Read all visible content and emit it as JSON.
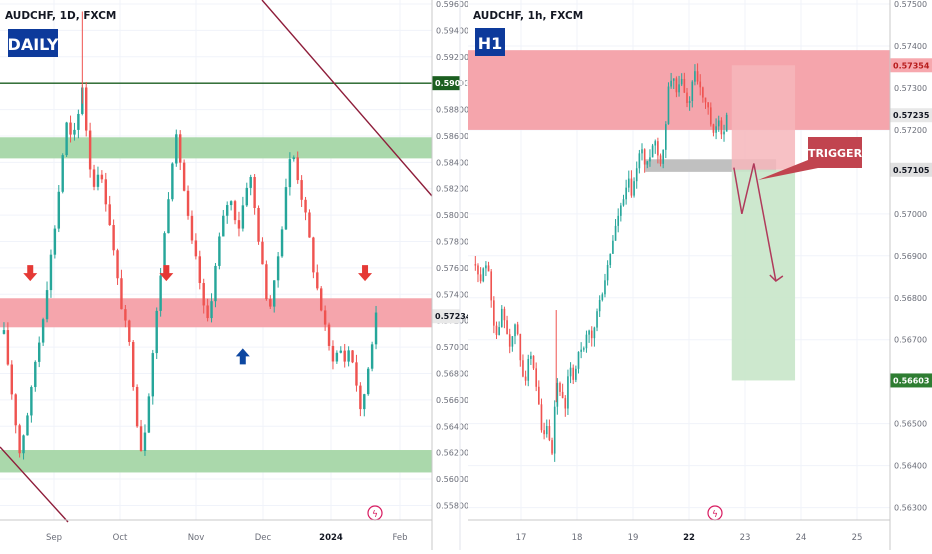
{
  "chart_data": [
    {
      "type": "candlestick",
      "symbol_label": "AUDCHF, 1D, FXCM",
      "badge": "DAILY",
      "ylim": [
        0.5572,
        0.596
      ],
      "y_ticks": [
        "0.59600",
        "0.59400",
        "0.59200",
        "0.59000",
        "0.58800",
        "0.58600",
        "0.58400",
        "0.58200",
        "0.58000",
        "0.57800",
        "0.57600",
        "0.57400",
        "0.57200",
        "0.57000",
        "0.56800",
        "0.56600",
        "0.56400",
        "0.56200",
        "0.56000",
        "0.55800"
      ],
      "x_ticks": [
        "Sep",
        "Oct",
        "Nov",
        "Dec",
        "2024",
        "Feb"
      ],
      "price_labels": [
        {
          "label": "0.59000",
          "value": 0.59,
          "color": "#1b5e20"
        },
        {
          "label": "0.57234",
          "value": 0.57234,
          "color": "#e8e8e8"
        }
      ],
      "zones": [
        {
          "kind": "demand",
          "from": 0.5843,
          "to": 0.5859,
          "color": "#a5d6a7"
        },
        {
          "kind": "supply",
          "from": 0.5715,
          "to": 0.5737,
          "color": "#f4a0a8"
        },
        {
          "kind": "demand",
          "from": 0.5605,
          "to": 0.5622,
          "color": "#a5d6a7"
        }
      ],
      "horizontal_line": {
        "value": 0.59,
        "color": "#1b5e20"
      },
      "markers": [
        {
          "kind": "down",
          "color": "#e53935",
          "x_frac": 0.07,
          "value": 0.575
        },
        {
          "kind": "down",
          "color": "#e53935",
          "x_frac": 0.385,
          "value": 0.575
        },
        {
          "kind": "up",
          "color": "#0d47a1",
          "x_frac": 0.562,
          "value": 0.5699
        },
        {
          "kind": "down",
          "color": "#e53935",
          "x_frac": 0.845,
          "value": 0.575
        }
      ],
      "path": [
        0.571,
        0.568,
        0.565,
        0.562,
        0.564,
        0.566,
        0.569,
        0.571,
        0.574,
        0.577,
        0.58,
        0.584,
        0.587,
        0.5855,
        0.587,
        0.59,
        0.585,
        0.582,
        0.5835,
        0.582,
        0.58,
        0.577,
        0.574,
        0.572,
        0.57,
        0.566,
        0.562,
        0.564,
        0.568,
        0.572,
        0.576,
        0.58,
        0.584,
        0.586,
        0.583,
        0.58,
        0.5775,
        0.576,
        0.573,
        0.572,
        0.575,
        0.578,
        0.58,
        0.5815,
        0.58,
        0.579,
        0.582,
        0.583,
        0.58,
        0.577,
        0.574,
        0.573,
        0.576,
        0.579,
        0.583,
        0.585,
        0.583,
        0.581,
        0.579,
        0.576,
        0.574,
        0.572,
        0.57,
        0.569,
        0.57,
        0.569,
        0.57,
        0.568,
        0.565,
        0.567,
        0.57,
        0.5723
      ],
      "highlighted_candle_index": 15
    },
    {
      "type": "candlestick",
      "symbol_label": "AUDCHF, 1h, FXCM",
      "badge": "H1",
      "ylim": [
        0.5628,
        0.575
      ],
      "y_ticks": [
        "0.57500",
        "0.57400",
        "0.57300",
        "0.57200",
        "0.57000",
        "0.56900",
        "0.56800",
        "0.56700",
        "0.56500",
        "0.56400",
        "0.56300"
      ],
      "x_ticks": [
        "17",
        "18",
        "19",
        "22",
        "23",
        "24",
        "25"
      ],
      "price_labels": [
        {
          "label": "0.57354",
          "value": 0.57354,
          "color": "#f7a8ae"
        },
        {
          "label": "0.57235",
          "value": 0.57235,
          "color": "#e8e8e8"
        },
        {
          "label": "0.57105",
          "value": 0.57105,
          "color": "#e0e0e0"
        },
        {
          "label": "0.56603",
          "value": 0.56603,
          "color": "#2e7d32"
        }
      ],
      "zones": [
        {
          "kind": "supply",
          "from": 0.572,
          "to": 0.5739,
          "color": "#f4a0a8"
        },
        {
          "kind": "trigger",
          "from": 0.571,
          "to": 0.5713,
          "color": "#bdbdbd"
        }
      ],
      "trade_box": {
        "entry": 0.57105,
        "stop": 0.57354,
        "target": 0.56603,
        "x_start_frac": 0.625,
        "x_end_frac": 0.775
      },
      "projection": [
        0.5711,
        0.57,
        0.5712,
        0.5684
      ],
      "callout": "TRIGGER",
      "path": [
        0.5688,
        0.5682,
        0.569,
        0.5685,
        0.5675,
        0.567,
        0.5678,
        0.5672,
        0.5668,
        0.5675,
        0.5665,
        0.566,
        0.5667,
        0.5662,
        0.5655,
        0.5645,
        0.565,
        0.564,
        0.566,
        0.5658,
        0.5652,
        0.5665,
        0.566,
        0.5668,
        0.5666,
        0.5672,
        0.567,
        0.5676,
        0.568,
        0.5685,
        0.569,
        0.5696,
        0.57,
        0.5703,
        0.5708,
        0.5704,
        0.5712,
        0.5716,
        0.571,
        0.5715,
        0.5718,
        0.5712,
        0.5716,
        0.573,
        0.5734,
        0.5728,
        0.5733,
        0.5725,
        0.5729,
        0.5735,
        0.573,
        0.5727,
        0.5724,
        0.5718,
        0.5722,
        0.5719,
        0.5723
      ],
      "highlighted_candle_index": 18
    }
  ]
}
